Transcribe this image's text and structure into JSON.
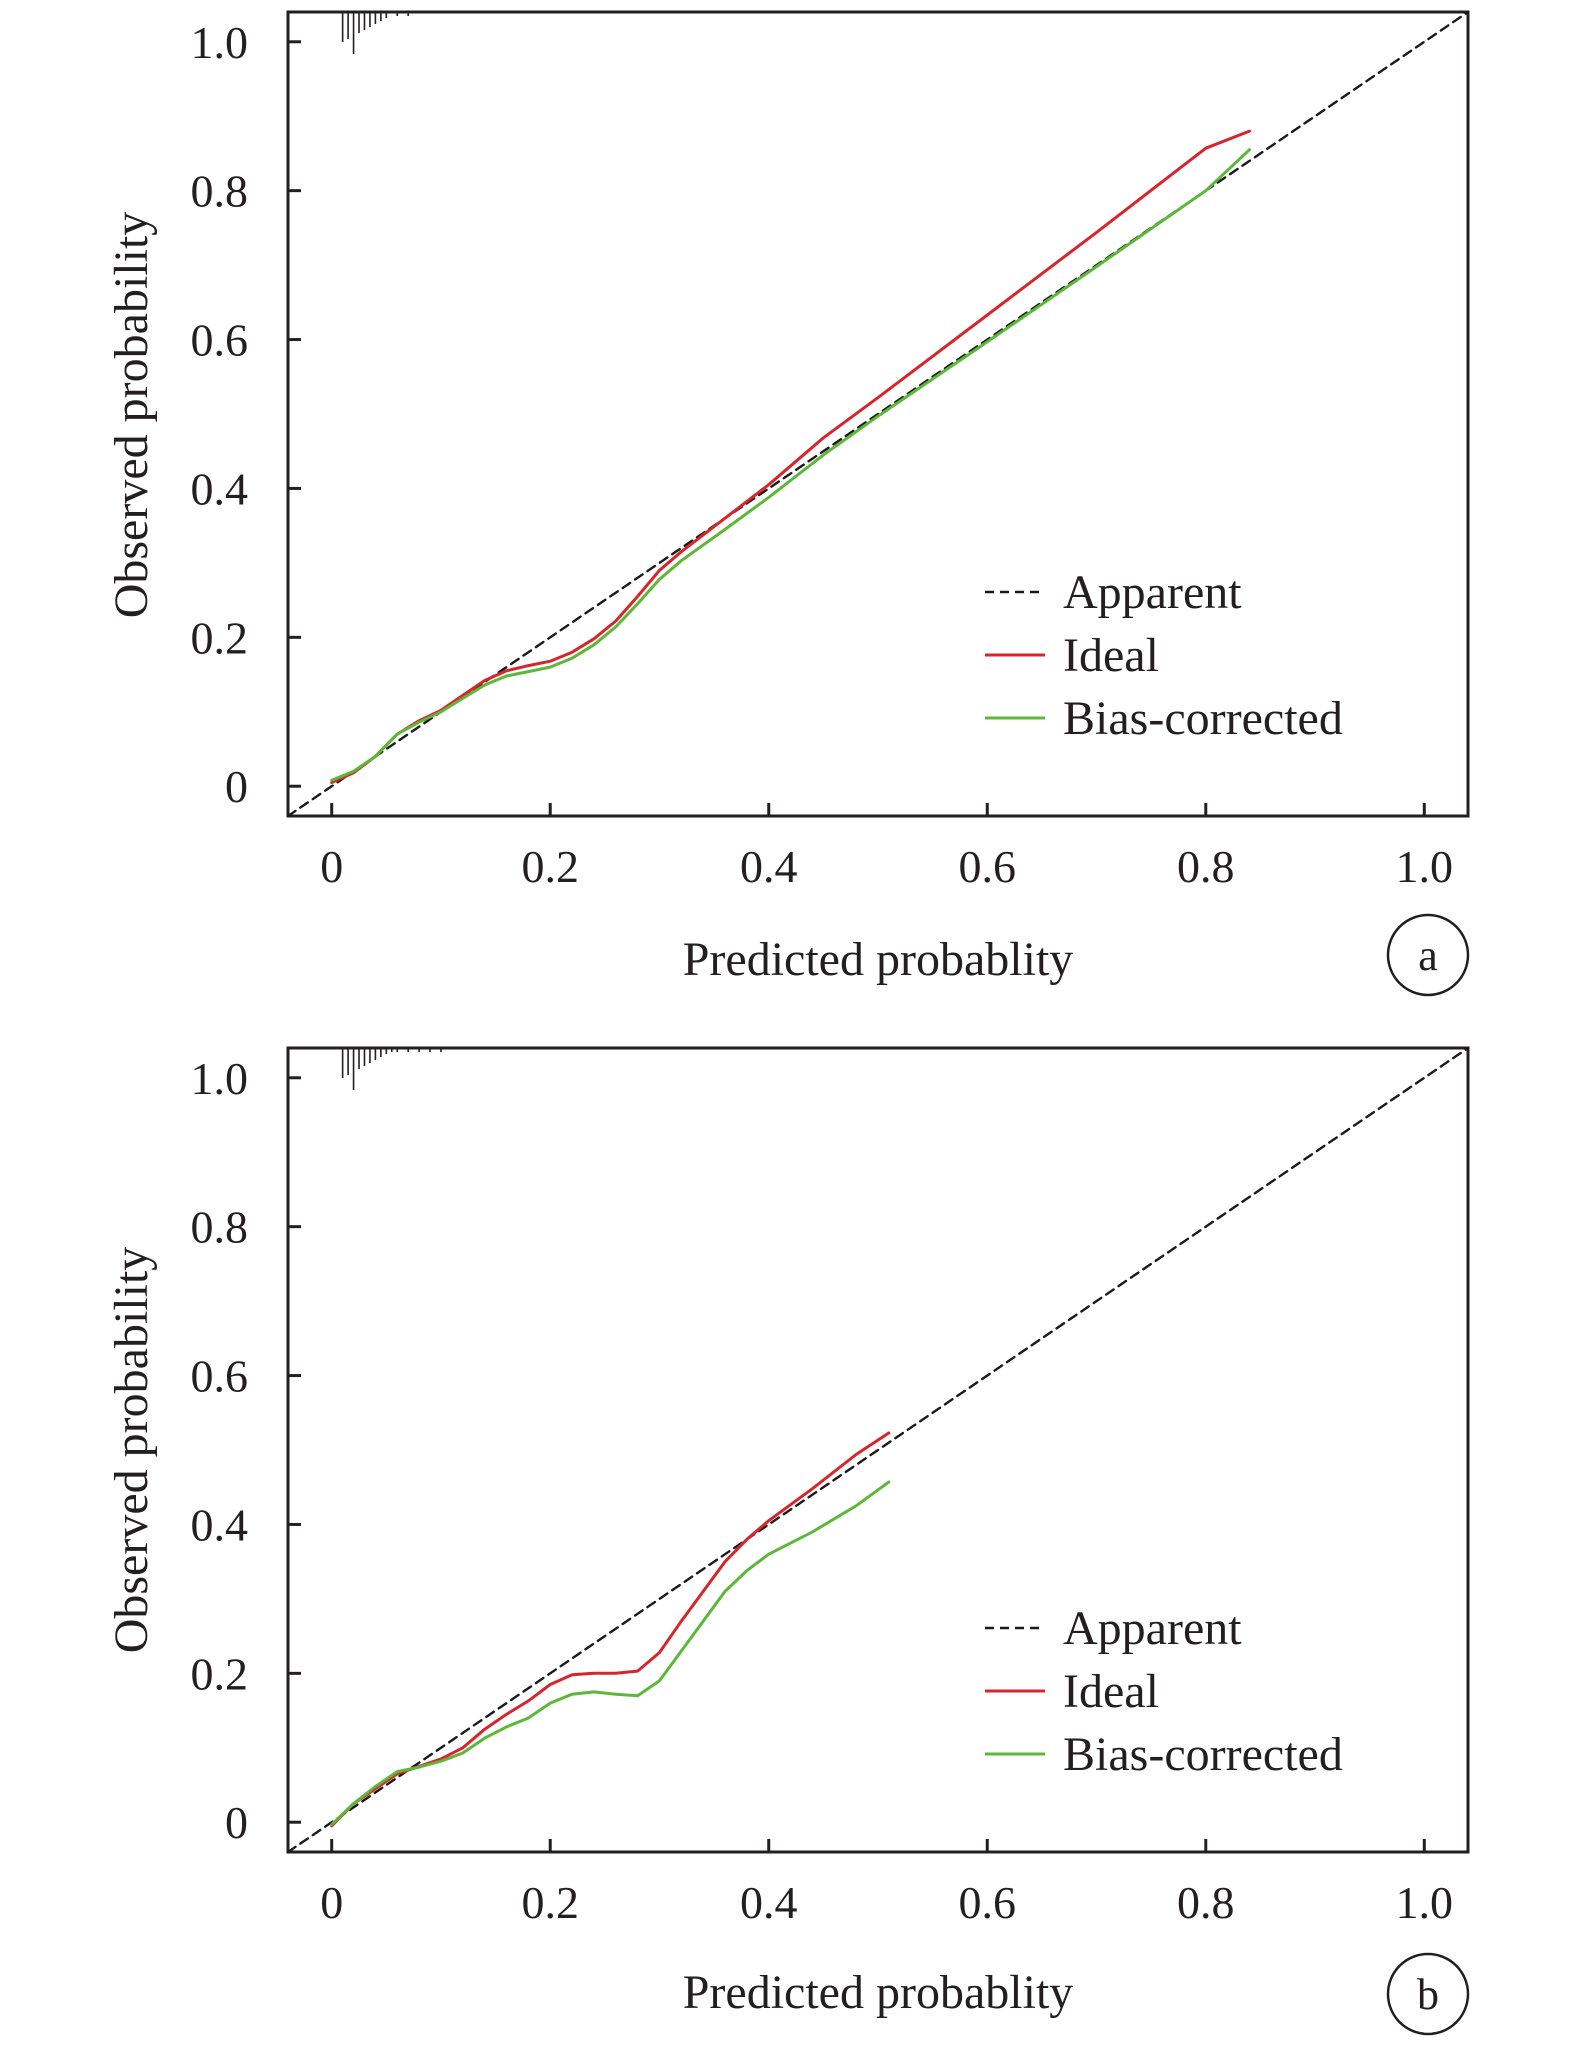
{
  "chart_data": [
    {
      "type": "line",
      "panel_label": "a",
      "xlabel": "Predicted probablity",
      "ylabel": "Observed probability",
      "xlim": [
        -0.04,
        1.04
      ],
      "ylim": [
        -0.04,
        1.04
      ],
      "x_ticks": [
        0,
        0.2,
        0.4,
        0.6,
        0.8,
        1.0
      ],
      "x_tick_labels": [
        "0",
        "0.2",
        "0.4",
        "0.6",
        "0.8",
        "1.0"
      ],
      "y_ticks": [
        0,
        0.2,
        0.4,
        0.6,
        0.8,
        1.0
      ],
      "y_tick_labels": [
        "0",
        "0.2",
        "0.4",
        "0.6",
        "0.8",
        "1.0"
      ],
      "grid": false,
      "legend_position": "bottom-right",
      "rug_x": [
        0.01,
        0.015,
        0.02,
        0.025,
        0.03,
        0.035,
        0.04,
        0.045,
        0.05,
        0.06,
        0.07
      ],
      "series": [
        {
          "name": "Apparent",
          "color": "#1a1a1a",
          "style": "dashed",
          "x": [
            -0.04,
            1.04
          ],
          "y": [
            -0.04,
            1.04
          ]
        },
        {
          "name": "Ideal",
          "color": "#d7262b",
          "style": "solid",
          "x": [
            0.0,
            0.02,
            0.04,
            0.06,
            0.08,
            0.1,
            0.12,
            0.14,
            0.16,
            0.18,
            0.2,
            0.22,
            0.24,
            0.26,
            0.28,
            0.3,
            0.32,
            0.36,
            0.4,
            0.45,
            0.5,
            0.6,
            0.7,
            0.8,
            0.84
          ],
          "y": [
            0.005,
            0.018,
            0.04,
            0.07,
            0.088,
            0.102,
            0.122,
            0.142,
            0.155,
            0.162,
            0.168,
            0.18,
            0.198,
            0.222,
            0.255,
            0.29,
            0.315,
            0.36,
            0.405,
            0.468,
            0.522,
            0.633,
            0.744,
            0.857,
            0.88
          ]
        },
        {
          "name": "Bias-corrected",
          "color": "#5db83a",
          "style": "solid",
          "x": [
            0.0,
            0.02,
            0.04,
            0.06,
            0.08,
            0.1,
            0.12,
            0.14,
            0.16,
            0.18,
            0.2,
            0.22,
            0.24,
            0.26,
            0.28,
            0.3,
            0.32,
            0.36,
            0.4,
            0.45,
            0.5,
            0.6,
            0.7,
            0.8,
            0.84
          ],
          "y": [
            0.008,
            0.02,
            0.04,
            0.07,
            0.086,
            0.1,
            0.118,
            0.136,
            0.148,
            0.154,
            0.16,
            0.172,
            0.19,
            0.214,
            0.245,
            0.278,
            0.303,
            0.345,
            0.388,
            0.445,
            0.497,
            0.597,
            0.698,
            0.8,
            0.855
          ]
        }
      ]
    },
    {
      "type": "line",
      "panel_label": "b",
      "xlabel": "Predicted probablity",
      "ylabel": "Observed probability",
      "xlim": [
        -0.04,
        1.04
      ],
      "ylim": [
        -0.04,
        1.04
      ],
      "x_ticks": [
        0,
        0.2,
        0.4,
        0.6,
        0.8,
        1.0
      ],
      "x_tick_labels": [
        "0",
        "0.2",
        "0.4",
        "0.6",
        "0.8",
        "1.0"
      ],
      "y_ticks": [
        0,
        0.2,
        0.4,
        0.6,
        0.8,
        1.0
      ],
      "y_tick_labels": [
        "0",
        "0.2",
        "0.4",
        "0.6",
        "0.8",
        "1.0"
      ],
      "grid": false,
      "legend_position": "bottom-right",
      "rug_x": [
        0.01,
        0.015,
        0.02,
        0.025,
        0.03,
        0.035,
        0.04,
        0.045,
        0.05,
        0.055,
        0.06,
        0.07,
        0.08,
        0.09,
        0.1
      ],
      "series": [
        {
          "name": "Apparent",
          "color": "#1a1a1a",
          "style": "dashed",
          "x": [
            -0.04,
            1.04
          ],
          "y": [
            -0.04,
            1.04
          ]
        },
        {
          "name": "Ideal",
          "color": "#d7262b",
          "style": "solid",
          "x": [
            0.0,
            0.02,
            0.04,
            0.06,
            0.08,
            0.1,
            0.12,
            0.14,
            0.16,
            0.18,
            0.2,
            0.22,
            0.24,
            0.26,
            0.28,
            0.3,
            0.32,
            0.34,
            0.36,
            0.38,
            0.4,
            0.44,
            0.48,
            0.51
          ],
          "y": [
            -0.005,
            0.025,
            0.045,
            0.065,
            0.075,
            0.085,
            0.1,
            0.125,
            0.145,
            0.163,
            0.185,
            0.198,
            0.2,
            0.2,
            0.203,
            0.228,
            0.27,
            0.31,
            0.35,
            0.38,
            0.405,
            0.448,
            0.494,
            0.523
          ]
        },
        {
          "name": "Bias-corrected",
          "color": "#5db83a",
          "style": "solid",
          "x": [
            0.0,
            0.02,
            0.04,
            0.06,
            0.08,
            0.1,
            0.12,
            0.14,
            0.16,
            0.18,
            0.2,
            0.22,
            0.24,
            0.26,
            0.28,
            0.3,
            0.32,
            0.34,
            0.36,
            0.38,
            0.4,
            0.44,
            0.48,
            0.51
          ],
          "y": [
            -0.003,
            0.025,
            0.048,
            0.068,
            0.074,
            0.082,
            0.093,
            0.113,
            0.128,
            0.14,
            0.16,
            0.172,
            0.175,
            0.172,
            0.17,
            0.19,
            0.23,
            0.27,
            0.31,
            0.338,
            0.36,
            0.39,
            0.425,
            0.457
          ]
        }
      ]
    }
  ]
}
